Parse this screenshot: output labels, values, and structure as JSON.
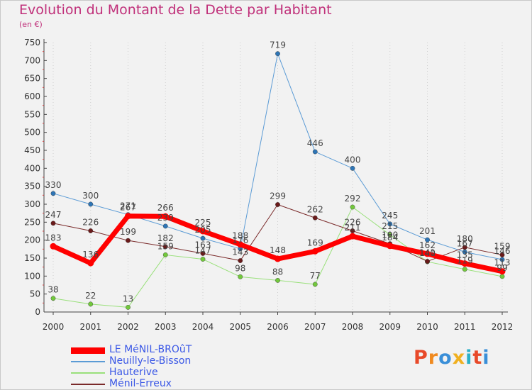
{
  "title": "Evolution du Montant de la Dette par Habitant",
  "unit_label": "(en €)",
  "logo": {
    "text": "Proxiti",
    "colors": [
      "#e84a2a",
      "#f08a20",
      "#3a8fd8",
      "#f0b020",
      "#2ab0c8",
      "#e84a2a",
      "#3a8fd8"
    ]
  },
  "chart_data": {
    "type": "line",
    "title": "Evolution du Montant de la Dette par Habitant",
    "ylabel": "(en €)",
    "xlabel": "",
    "x": [
      "2000",
      "2001",
      "2002",
      "2003",
      "2004",
      "2005",
      "2006",
      "2007",
      "2008",
      "2009",
      "2010",
      "2011",
      "2012"
    ],
    "ylim": [
      0,
      750
    ],
    "yticks": [
      0,
      50,
      100,
      150,
      200,
      250,
      300,
      350,
      400,
      450,
      500,
      550,
      600,
      650,
      700,
      750
    ],
    "grid": "vertical dotted",
    "legend_position": "bottom-left",
    "series": [
      {
        "name": "LE MéNIL-BROûT",
        "color": "#ff0000",
        "width": 7,
        "values": [
          183,
          136,
          267,
          266,
          225,
          188,
          148,
          169,
          211,
          184,
          162,
          135,
          113
        ],
        "labels": [
          "183",
          "136",
          "267",
          "266",
          "225",
          "188",
          "148",
          "169",
          "211",
          "184",
          "162",
          "135",
          "113"
        ]
      },
      {
        "name": "Neuilly-le-Bisson",
        "color": "#5b9bd5",
        "marker": "#2e75b6",
        "width": 1,
        "values": [
          330,
          300,
          271,
          239,
          205,
          176,
          719,
          446,
          400,
          245,
          201,
          167,
          146
        ],
        "labels": [
          "330",
          "300",
          "271",
          "239",
          "205",
          "176",
          "719",
          "446",
          "400",
          "245",
          "201",
          "167",
          "146"
        ]
      },
      {
        "name": "Hauterive",
        "color": "#99e07a",
        "marker": "#72c83c",
        "width": 1,
        "values": [
          38,
          22,
          13,
          159,
          147,
          98,
          88,
          77,
          292,
          215,
          140,
          119,
          99
        ],
        "labels": [
          "38",
          "22",
          "13",
          "159",
          "147",
          "98",
          "88",
          "77",
          "292",
          "215",
          "140",
          "119",
          "99"
        ]
      },
      {
        "name": "Ménil-Erreux",
        "color": "#7a2a2a",
        "marker": "#6a1a1a",
        "width": 1,
        "values": [
          247,
          226,
          199,
          182,
          163,
          143,
          299,
          262,
          226,
          190,
          141,
          180,
          159
        ],
        "labels": [
          "247",
          "226",
          "199",
          "182",
          "163",
          "143",
          "299",
          "262",
          "226",
          "190",
          "141",
          "180",
          "159"
        ]
      }
    ]
  }
}
